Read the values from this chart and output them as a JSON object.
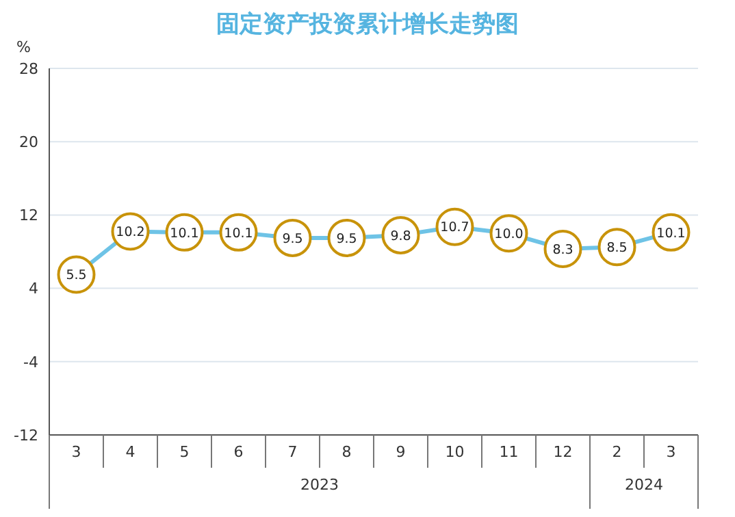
{
  "chart_data": {
    "type": "line",
    "title": "固定资产投资累计增长走势图",
    "ylabel": "%",
    "categories": [
      "3",
      "4",
      "5",
      "6",
      "7",
      "8",
      "9",
      "10",
      "11",
      "12",
      "2",
      "3"
    ],
    "series": [
      {
        "color": "#6ec3e6",
        "values": [
          5.5,
          10.2,
          10.1,
          10.1,
          9.5,
          9.5,
          9.8,
          10.7,
          10.0,
          8.3,
          8.5,
          10.1
        ],
        "value_labels": [
          "5.5",
          "10.2",
          "10.1",
          "10.1",
          "9.5",
          "9.5",
          "9.8",
          "10.7",
          "10.0",
          "8.3",
          "8.5",
          "10.1"
        ]
      }
    ],
    "annotations": [
      "2023",
      "2024"
    ],
    "ylim": [
      -12,
      28
    ],
    "yticks": [
      -12,
      -4,
      4,
      12,
      20,
      28
    ],
    "grid": "y",
    "marker": "circle",
    "legend": false
  }
}
